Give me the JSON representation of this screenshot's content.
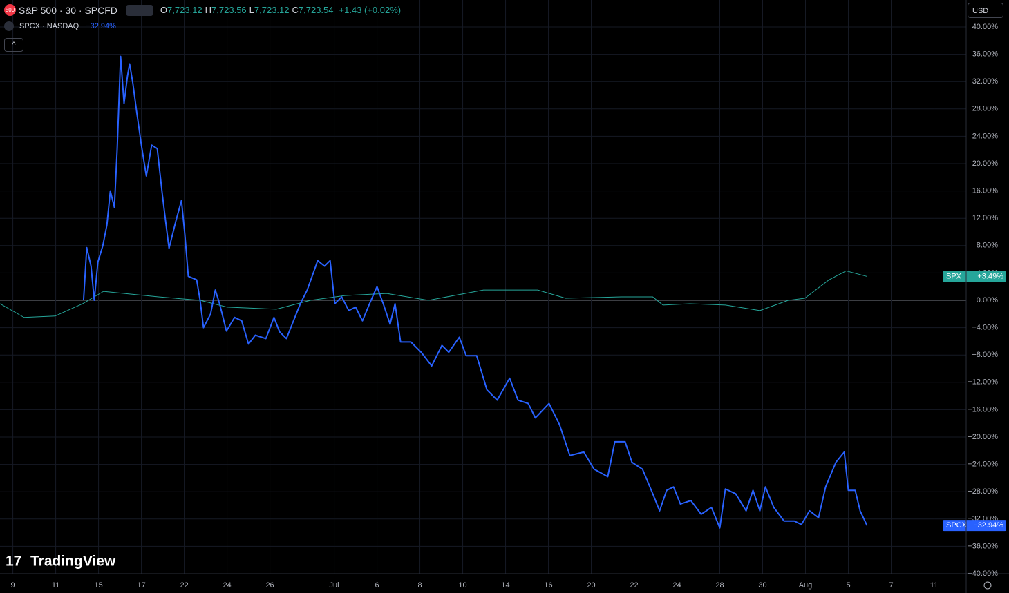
{
  "header": {
    "badge": "500",
    "symbol": "S&P 500 · 30 · SPCFD",
    "ohlc": [
      {
        "k": "O",
        "v": "7,723.12"
      },
      {
        "k": "H",
        "v": "7,723.56"
      },
      {
        "k": "L",
        "v": "7,723.12"
      },
      {
        "k": "C",
        "v": "7,723.54"
      }
    ],
    "change": "+1.43 (+0.02%)",
    "compare_symbol": "SPCX · NASDAQ",
    "compare_change": "−32.94%",
    "currency": "USD",
    "logo": "TradingView"
  },
  "chart_data": {
    "type": "line",
    "xlim": [
      -0.6,
      44.5
    ],
    "xticks": [
      {
        "value": 0,
        "label": "9"
      },
      {
        "value": 2,
        "label": "11"
      },
      {
        "value": 4,
        "label": "15"
      },
      {
        "value": 6,
        "label": "17"
      },
      {
        "value": 8,
        "label": "22"
      },
      {
        "value": 10,
        "label": "24"
      },
      {
        "value": 12,
        "label": "26"
      },
      {
        "value": 15,
        "label": "Jul"
      },
      {
        "value": 17,
        "label": "6"
      },
      {
        "value": 19,
        "label": "8"
      },
      {
        "value": 21,
        "label": "10"
      },
      {
        "value": 23,
        "label": "14"
      },
      {
        "value": 25,
        "label": "16"
      },
      {
        "value": 27,
        "label": "20"
      },
      {
        "value": 29,
        "label": "22"
      },
      {
        "value": 31,
        "label": "24"
      },
      {
        "value": 33,
        "label": "28"
      },
      {
        "value": 35,
        "label": "30"
      },
      {
        "value": 37,
        "label": "Aug"
      },
      {
        "value": 39,
        "label": "5"
      },
      {
        "value": 41,
        "label": "7"
      },
      {
        "value": 43,
        "label": "11"
      }
    ],
    "ylim": [
      -40,
      40
    ],
    "yticks": [
      {
        "value": 40,
        "label": "40.00%"
      },
      {
        "value": 36,
        "label": "36.00%"
      },
      {
        "value": 32,
        "label": "32.00%"
      },
      {
        "value": 28,
        "label": "28.00%"
      },
      {
        "value": 24,
        "label": "24.00%"
      },
      {
        "value": 20,
        "label": "20.00%"
      },
      {
        "value": 16,
        "label": "16.00%"
      },
      {
        "value": 12,
        "label": "12.00%"
      },
      {
        "value": 8,
        "label": "8.00%"
      },
      {
        "value": 4,
        "label": "4.00%"
      },
      {
        "value": 0,
        "label": "0.00%"
      },
      {
        "value": -4,
        "label": "−4.00%"
      },
      {
        "value": -8,
        "label": "−8.00%"
      },
      {
        "value": -12,
        "label": "−12.00%"
      },
      {
        "value": -16,
        "label": "−16.00%"
      },
      {
        "value": -20,
        "label": "−20.00%"
      },
      {
        "value": -24,
        "label": "−24.00%"
      },
      {
        "value": -28,
        "label": "−28.00%"
      },
      {
        "value": -32,
        "label": "−32.00%"
      },
      {
        "value": -36,
        "label": "−36.00%"
      },
      {
        "value": -40,
        "label": "−40.00%"
      }
    ],
    "grid": true,
    "series": [
      {
        "name": "SPX",
        "color": "#26a69a",
        "width": 1,
        "last_label": "+3.49%",
        "x": [
          -0.6,
          0.52,
          1.97,
          3.26,
          4.23,
          6.8,
          8.74,
          10,
          12.3,
          13.9,
          15.5,
          17.45,
          19.4,
          21.97,
          24.5,
          25.8,
          28.4,
          29.87,
          30.35,
          31.6,
          33.26,
          34.87,
          36.2,
          36.97,
          38.1,
          38.9,
          39.87
        ],
        "values": [
          -0.5,
          -2.5,
          -2.3,
          -0.5,
          1.3,
          0.5,
          0,
          -1,
          -1.3,
          0,
          0.7,
          1,
          0,
          1.5,
          1.5,
          0.3,
          0.5,
          0.5,
          -0.7,
          -0.5,
          -0.7,
          -1.5,
          0,
          0.3,
          3,
          4.3,
          3.49
        ]
      },
      {
        "name": "SPCX",
        "color": "#2962ff",
        "width": 2,
        "last_label": "−32.94%",
        "x": [
          3.3,
          3.45,
          3.65,
          3.8,
          3.97,
          4.2,
          4.39,
          4.55,
          4.74,
          4.87,
          5.03,
          5.19,
          5.35,
          5.45,
          5.6,
          5.77,
          6,
          6.23,
          6.48,
          6.74,
          6.97,
          7.13,
          7.29,
          7.61,
          7.87,
          8.03,
          8.19,
          8.58,
          8.74,
          8.9,
          9.23,
          9.45,
          9.65,
          9.97,
          10.35,
          10.68,
          11,
          11.32,
          11.81,
          12.19,
          12.45,
          12.77,
          13.1,
          13.42,
          13.74,
          14.23,
          14.55,
          14.81,
          15.03,
          15.35,
          15.68,
          16,
          16.32,
          16.65,
          17,
          17.29,
          17.61,
          17.84,
          18.1,
          18.58,
          19.06,
          19.55,
          20.03,
          20.35,
          20.84,
          21.16,
          21.65,
          22.13,
          22.61,
          23.19,
          23.58,
          24.06,
          24.39,
          25.03,
          25.52,
          26,
          26.65,
          27.13,
          27.77,
          28.1,
          28.58,
          28.9,
          29.39,
          29.87,
          30.19,
          30.52,
          30.84,
          31.16,
          31.65,
          32.13,
          32.61,
          33,
          33.26,
          33.74,
          34.23,
          34.55,
          34.87,
          35.13,
          35.52,
          36,
          36.48,
          36.81,
          37.19,
          37.61,
          37.94,
          38.42,
          38.81,
          39,
          39.32,
          39.55,
          39.87
        ],
        "values": [
          0,
          7.7,
          5,
          0,
          5.6,
          8,
          11,
          16,
          13.6,
          22.1,
          35.7,
          28.8,
          32.8,
          34.6,
          31.8,
          27.8,
          22.7,
          18.2,
          22.7,
          22.2,
          15.7,
          11.6,
          7.6,
          11.6,
          14.6,
          9.6,
          3.5,
          3,
          0,
          -4,
          -2,
          1.5,
          -0.5,
          -4.5,
          -2.5,
          -3,
          -6.4,
          -5.1,
          -5.6,
          -2.5,
          -4.6,
          -5.6,
          -3,
          -0.5,
          1.5,
          5.8,
          5,
          5.8,
          -0.5,
          0.5,
          -1.5,
          -1,
          -3,
          -0.5,
          2,
          -0.5,
          -3.5,
          -0.5,
          -6.1,
          -6.1,
          -7.6,
          -9.6,
          -6.6,
          -7.6,
          -5.4,
          -8.1,
          -8.1,
          -13.1,
          -14.6,
          -11.4,
          -14.6,
          -15.1,
          -17.2,
          -15.1,
          -18.2,
          -22.7,
          -22.2,
          -24.7,
          -25.8,
          -20.7,
          -20.7,
          -23.7,
          -24.7,
          -28.3,
          -30.8,
          -27.8,
          -27.3,
          -29.8,
          -29.3,
          -31.3,
          -30.3,
          -33.3,
          -27.6,
          -28.3,
          -30.8,
          -27.8,
          -30.8,
          -27.3,
          -30.3,
          -32.3,
          -32.3,
          -32.8,
          -30.8,
          -31.8,
          -27.3,
          -23.7,
          -22.2,
          -27.8,
          -27.8,
          -30.8,
          -32.94
        ]
      }
    ]
  }
}
